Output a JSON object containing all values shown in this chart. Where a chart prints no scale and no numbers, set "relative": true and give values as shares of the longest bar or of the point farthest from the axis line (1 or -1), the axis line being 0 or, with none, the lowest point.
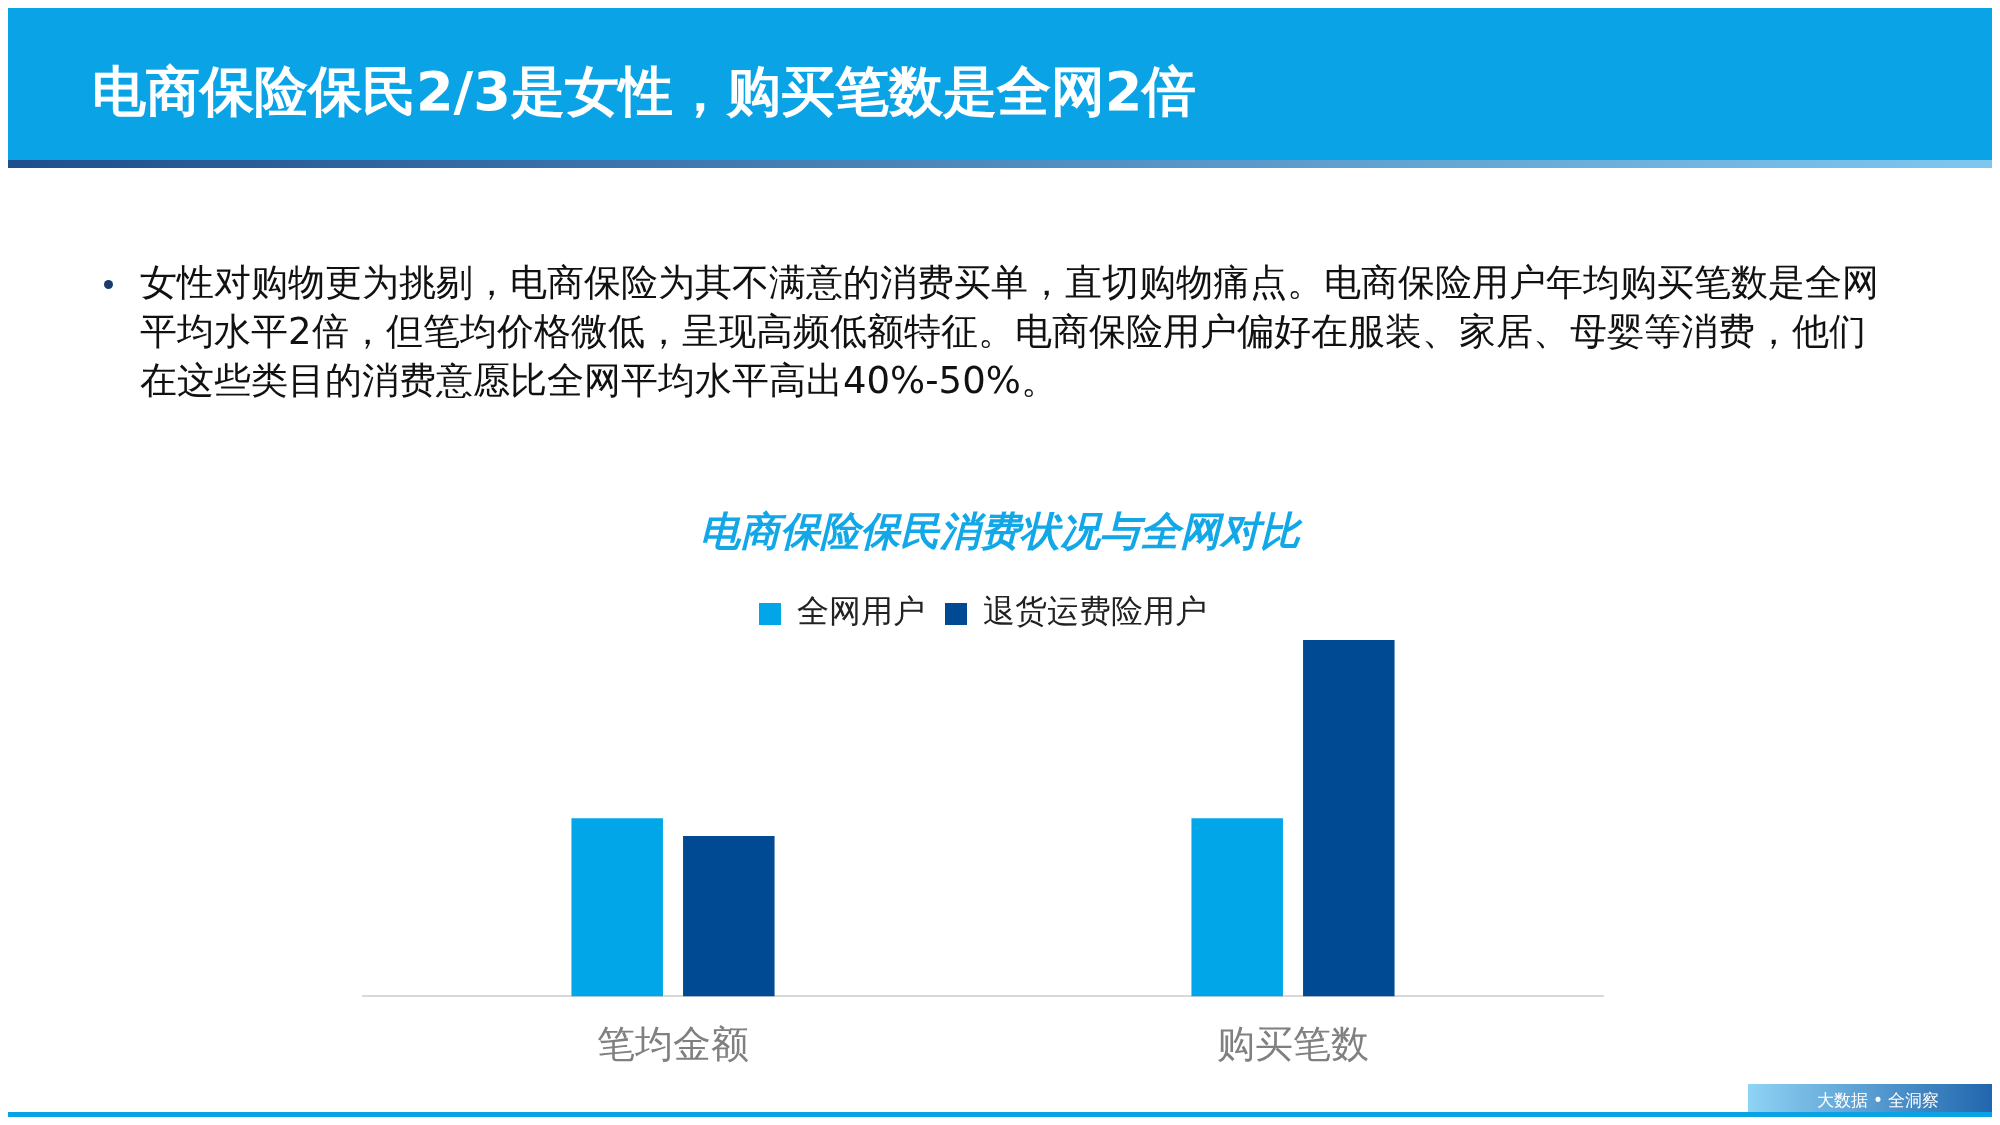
{
  "chart_data": {
    "type": "bar",
    "title": "电商保险保民2/3是女性，购买笔数是全网2倍",
    "subtitle": "电商保险保民消费状况与全网对比",
    "annotations": [
      "女性对购物更为挑剔，电商保险为其不满意的消费买单，直切购物痛点。电商保险用户年均购买笔数是全网平均水平2倍，但笔均价格微低，呈现高频低额特征。电商保险用户偏好在服装、家居、母婴等消费，他们在这些类目的消费意愿比全网平均水平高出40%-50%。",
      "大数据 • 全洞察"
    ],
    "categories": [
      "笔均金额",
      "购买笔数"
    ],
    "series": [
      {
        "name": "全网用户",
        "color": "#00a6e8",
        "values": [
          0.5,
          0.5
        ]
      },
      {
        "name": "退货运费险用户",
        "color": "#004a93",
        "values": [
          0.45,
          1
        ]
      }
    ],
    "relative": true,
    "legend": "top",
    "grid": false
  }
}
